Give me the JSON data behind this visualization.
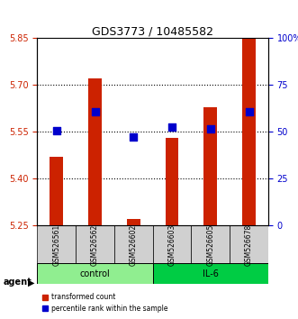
{
  "title": "GDS3773 / 10485582",
  "samples": [
    "GSM526561",
    "GSM526562",
    "GSM526602",
    "GSM526603",
    "GSM526605",
    "GSM526678"
  ],
  "groups": [
    "control",
    "control",
    "control",
    "IL-6",
    "IL-6",
    "IL-6"
  ],
  "group_labels": [
    "control",
    "IL-6"
  ],
  "group_colors": [
    "#90EE90",
    "#00CC44"
  ],
  "bar_values": [
    5.47,
    5.72,
    5.27,
    5.53,
    5.63,
    5.85
  ],
  "dot_values": [
    5.555,
    5.615,
    5.535,
    5.565,
    5.56,
    5.615
  ],
  "ymin": 5.25,
  "ymax": 5.85,
  "yticks_left": [
    5.25,
    5.4,
    5.55,
    5.7,
    5.85
  ],
  "yticks_right": [
    0,
    25,
    50,
    75,
    100
  ],
  "ytick_right_labels": [
    "0",
    "25",
    "50",
    "75",
    "100%"
  ],
  "bar_color": "#CC2200",
  "dot_color": "#0000CC",
  "bar_bottom": 5.25,
  "grid_values": [
    5.4,
    5.55,
    5.7
  ],
  "legend_items": [
    "transformed count",
    "percentile rank within the sample"
  ],
  "agent_label": "agent",
  "figsize": [
    3.31,
    3.54
  ],
  "dpi": 100
}
